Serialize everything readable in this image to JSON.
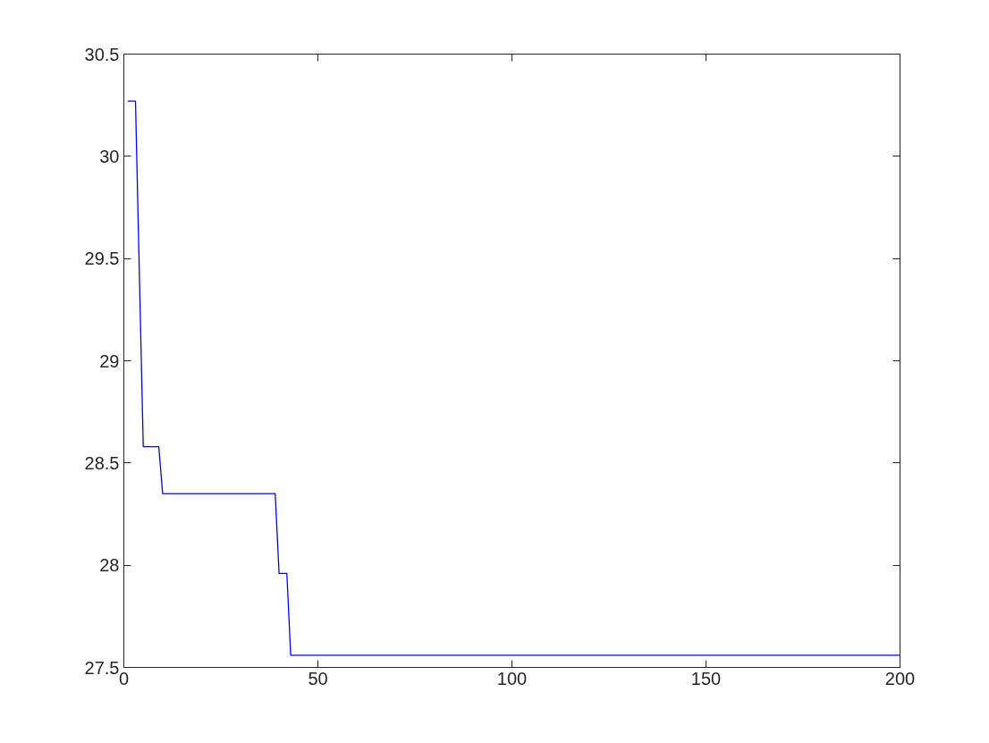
{
  "chart_data": {
    "type": "line",
    "x": [
      1,
      3,
      5,
      9,
      10,
      39,
      40,
      42,
      43,
      200
    ],
    "series": [
      {
        "color": "#0000ff",
        "values": [
          30.27,
          30.27,
          28.58,
          28.58,
          28.35,
          28.35,
          27.96,
          27.96,
          27.56,
          27.56
        ]
      }
    ],
    "xlim": [
      0,
      200
    ],
    "xticks": [
      0,
      50,
      100,
      150,
      200
    ],
    "ylim": [
      27.5,
      30.5
    ],
    "yticks": [
      27.5,
      28,
      28.5,
      29,
      29.5,
      30,
      30.5
    ],
    "grid": false,
    "marker": "none",
    "line_style": "solid"
  }
}
